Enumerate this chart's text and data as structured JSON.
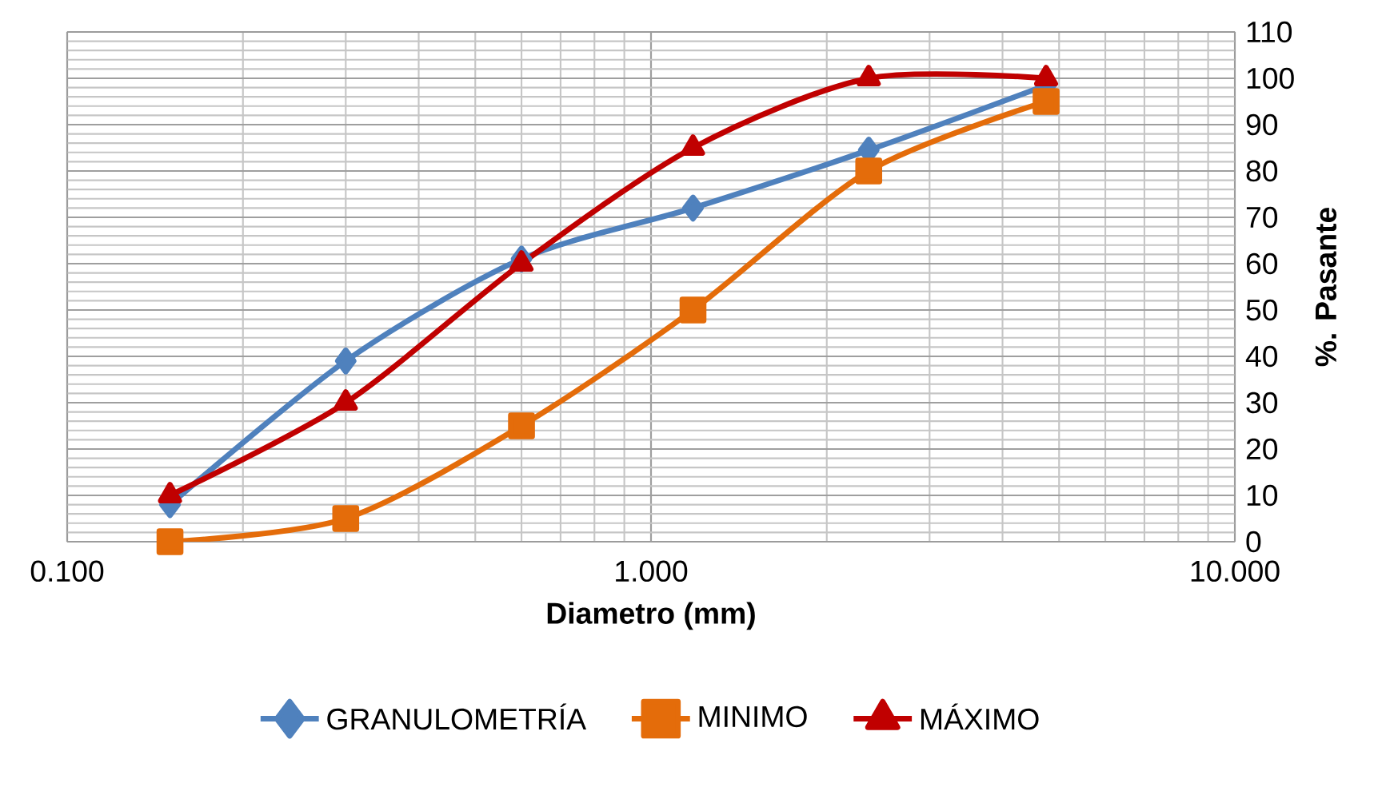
{
  "chart_data": {
    "type": "line",
    "xlabel": "Diametro   (mm)",
    "ylabel": "%. Pasante",
    "log": "x",
    "grid": true,
    "legend": "bottom",
    "line_style": "solid",
    "xlim": [
      0.1,
      10
    ],
    "xticks": [
      {
        "value": 0.1,
        "label": "0.100"
      },
      {
        "value": 1,
        "label": "1.000"
      },
      {
        "value": 10,
        "label": "10.000"
      }
    ],
    "ylim": [
      0,
      110
    ],
    "yticks": [
      0,
      10,
      20,
      30,
      40,
      50,
      60,
      70,
      80,
      90,
      100,
      110
    ],
    "x": [
      0.15,
      0.3,
      0.6,
      1.18,
      2.36,
      4.75
    ],
    "series": [
      {
        "name": "GRANULOMETRÍA",
        "color": "#4f81bd",
        "marker": "diamond",
        "values": [
          8,
          39,
          61,
          72,
          84.5,
          98.5
        ]
      },
      {
        "name": "MINIMO",
        "color": "#e46c0a",
        "marker": "square",
        "values": [
          0,
          5,
          25,
          50,
          80,
          95
        ]
      },
      {
        "name": "MÁXIMO",
        "color": "#c00000",
        "marker": "triangle",
        "values": [
          10,
          30,
          60,
          85,
          100,
          100
        ]
      }
    ]
  }
}
